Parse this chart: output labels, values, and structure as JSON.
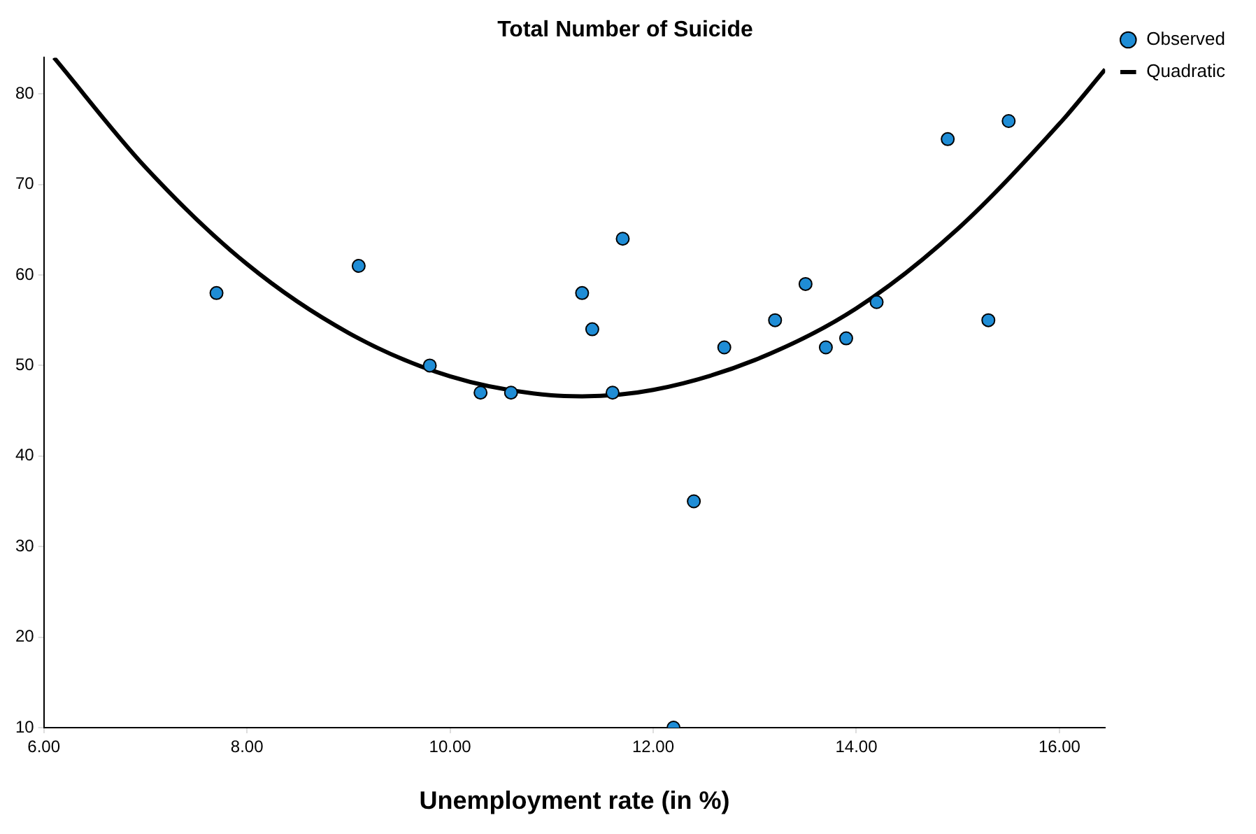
{
  "chart_data": {
    "type": "scatter",
    "title": "Total Number of Suicide",
    "xlabel": "Unemployment rate (in %)",
    "xlim": [
      6,
      16.45
    ],
    "xticks": [
      {
        "value": 6,
        "label": "6.00"
      },
      {
        "value": 8,
        "label": "8.00"
      },
      {
        "value": 10,
        "label": "10.00"
      },
      {
        "value": 12,
        "label": "12.00"
      },
      {
        "value": 14,
        "label": "14.00"
      },
      {
        "value": 16,
        "label": "16.00"
      }
    ],
    "ylim": [
      10,
      84
    ],
    "yticks": [
      10,
      20,
      30,
      40,
      50,
      60,
      70,
      80
    ],
    "grid": false,
    "legend": "top right",
    "series": [
      {
        "name": "Observed",
        "color": "#1f8dd6",
        "marker": "circle",
        "x": [
          7.7,
          9.1,
          9.8,
          10.3,
          10.6,
          11.3,
          11.4,
          11.6,
          11.7,
          12.2,
          12.4,
          12.7,
          13.2,
          13.5,
          13.7,
          13.9,
          14.2,
          14.9,
          15.3,
          15.5
        ],
        "values": [
          58,
          61,
          50,
          47,
          47,
          58,
          54,
          47,
          64,
          10,
          35,
          52,
          55,
          59,
          52,
          53,
          57,
          75,
          55,
          77
        ]
      },
      {
        "name": "Quadratic",
        "type": "line",
        "color": "#000000",
        "marker": "none",
        "x": [
          6.1,
          7,
          8,
          9,
          10,
          11,
          11.3,
          12,
          13,
          14,
          15,
          16,
          16.45
        ],
        "values": [
          84,
          71.9,
          61.2,
          53.6,
          48.8,
          46.7,
          46.6,
          47.3,
          50.6,
          56.3,
          65.1,
          76.7,
          82.7
        ]
      }
    ]
  }
}
